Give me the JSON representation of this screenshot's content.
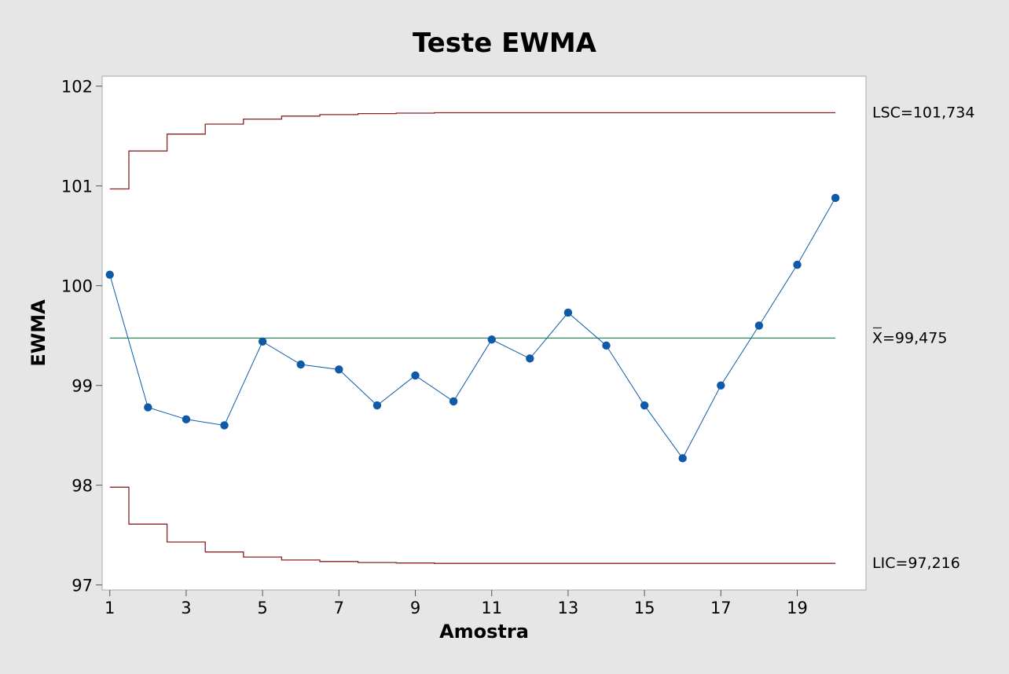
{
  "chart_data": {
    "type": "line",
    "title": "Teste EWMA",
    "xlabel": "Amostra",
    "ylabel": "EWMA",
    "x": [
      1,
      2,
      3,
      4,
      5,
      6,
      7,
      8,
      9,
      10,
      11,
      12,
      13,
      14,
      15,
      16,
      17,
      18,
      19,
      20
    ],
    "series": [
      {
        "values": [
          100.11,
          98.78,
          98.66,
          98.6,
          99.44,
          99.21,
          99.16,
          98.8,
          99.1,
          98.84,
          99.46,
          99.27,
          99.73,
          99.4,
          98.8,
          98.27,
          99.0,
          99.6,
          100.21,
          100.88
        ]
      }
    ],
    "ucl": [
      100.97,
      101.35,
      101.52,
      101.62,
      101.67,
      101.7,
      101.715,
      101.725,
      101.73,
      101.734,
      101.734,
      101.734,
      101.734,
      101.734,
      101.734,
      101.734,
      101.734,
      101.734,
      101.734,
      101.734
    ],
    "lcl": [
      97.98,
      97.61,
      97.43,
      97.33,
      97.28,
      97.25,
      97.235,
      97.225,
      97.22,
      97.216,
      97.216,
      97.216,
      97.216,
      97.216,
      97.216,
      97.216,
      97.216,
      97.216,
      97.216,
      97.216
    ],
    "center": 99.475,
    "labels": {
      "ucl": "LSC=101,734",
      "center": "=99,475",
      "center_symbol": "X",
      "lcl": "LIC=97,216"
    },
    "xticks": [
      "1",
      "3",
      "5",
      "7",
      "9",
      "11",
      "13",
      "15",
      "17",
      "19"
    ],
    "yticks": [
      "97",
      "98",
      "99",
      "100",
      "101",
      "102"
    ],
    "xlim": [
      0.8,
      20.8
    ],
    "ylim": [
      96.95,
      102.1
    ],
    "grid": false,
    "colors": {
      "series": "#0f5aa8",
      "limits": "#8b2121",
      "center": "#2e8b57",
      "background": "#e6e6e6",
      "plot": "#ffffff"
    }
  }
}
